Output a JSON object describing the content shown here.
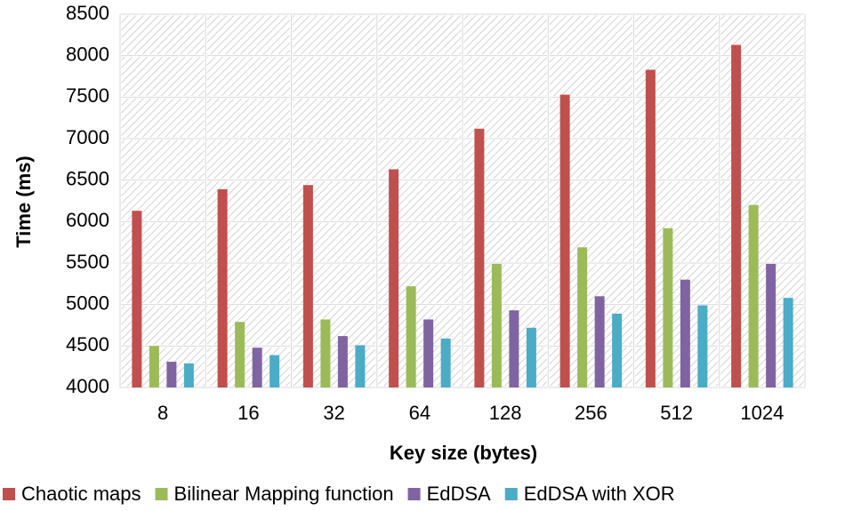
{
  "chart_data": {
    "type": "bar",
    "title": "",
    "xlabel": "Key size (bytes)",
    "ylabel": "Time (ms)",
    "categories": [
      "8",
      "16",
      "32",
      "64",
      "128",
      "256",
      "512",
      "1024"
    ],
    "ylim": [
      4000,
      8500
    ],
    "yticks": [
      4000,
      4500,
      5000,
      5500,
      6000,
      6500,
      7000,
      7500,
      8000,
      8500
    ],
    "grid": true,
    "legend_position": "bottom",
    "series": [
      {
        "name": "Chaotic maps",
        "color": "#c0504d",
        "values": [
          6130,
          6390,
          6440,
          6630,
          7120,
          7530,
          7830,
          8130
        ]
      },
      {
        "name": "Bilinear Mapping function",
        "color": "#9bbb59",
        "values": [
          4500,
          4790,
          4820,
          5220,
          5490,
          5690,
          5920,
          6200
        ]
      },
      {
        "name": "EdDSA",
        "color": "#8064a2",
        "values": [
          4310,
          4480,
          4620,
          4820,
          4930,
          5100,
          5300,
          5490
        ]
      },
      {
        "name": "EdDSA with XOR",
        "color": "#4bacc6",
        "values": [
          4290,
          4390,
          4510,
          4590,
          4720,
          4890,
          4990,
          5080
        ]
      }
    ]
  }
}
